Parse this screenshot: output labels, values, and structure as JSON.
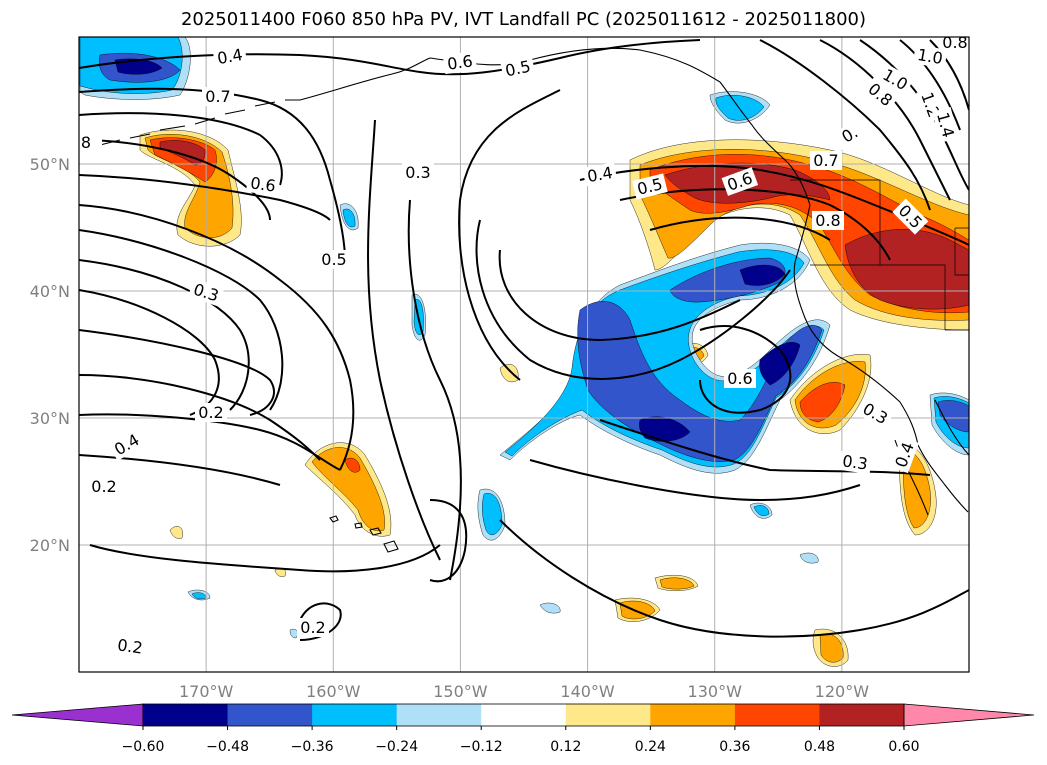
{
  "title": "2025011400 F060 850 hPa PV, IVT Landfall PC (2025011612 - 2025011800)",
  "map": {
    "projection": "equirectangular",
    "lon_range": [
      -180,
      -110
    ],
    "lat_range": [
      10,
      60
    ],
    "grid": true,
    "lon_ticks": [
      "170°W",
      "160°W",
      "150°W",
      "140°W",
      "130°W",
      "120°W"
    ],
    "lat_ticks": [
      "20°N",
      "30°N",
      "40°N",
      "50°N"
    ]
  },
  "contour_labels": [
    "0.4",
    "0.6",
    "0.5",
    "0.7",
    "8",
    "0.6",
    "0.3",
    "0.5",
    "0.3",
    "0.2",
    "0.4",
    "0.2",
    "0.2",
    "0.2",
    "0.4",
    "0.5",
    "0.6",
    "0.6",
    "0.8",
    "0.7",
    "0.5",
    "0.3",
    "0.3",
    "0.4",
    "1.0",
    "0.8",
    "1.2",
    "1.4",
    "1.0",
    "0.8",
    "0."
  ],
  "colorbar": {
    "ticks": [
      "−0.60",
      "−0.48",
      "−0.36",
      "−0.24",
      "−0.12",
      "0.12",
      "0.24",
      "0.36",
      "0.48",
      "0.60"
    ],
    "colors": [
      "#9b30d0",
      "#00008b",
      "#3355cc",
      "#00bfff",
      "#b0e0f8",
      "#ffffff",
      "#ffe88a",
      "#ffa500",
      "#ff4500",
      "#b22222",
      "#ff88aa"
    ]
  },
  "fill_colors": {
    "pos1": "#ffe88a",
    "pos2": "#ffa500",
    "pos3": "#ff4500",
    "pos4": "#b22222",
    "neg1": "#b0e0f8",
    "neg2": "#00bfff",
    "neg3": "#3355cc",
    "neg4": "#00008b"
  }
}
